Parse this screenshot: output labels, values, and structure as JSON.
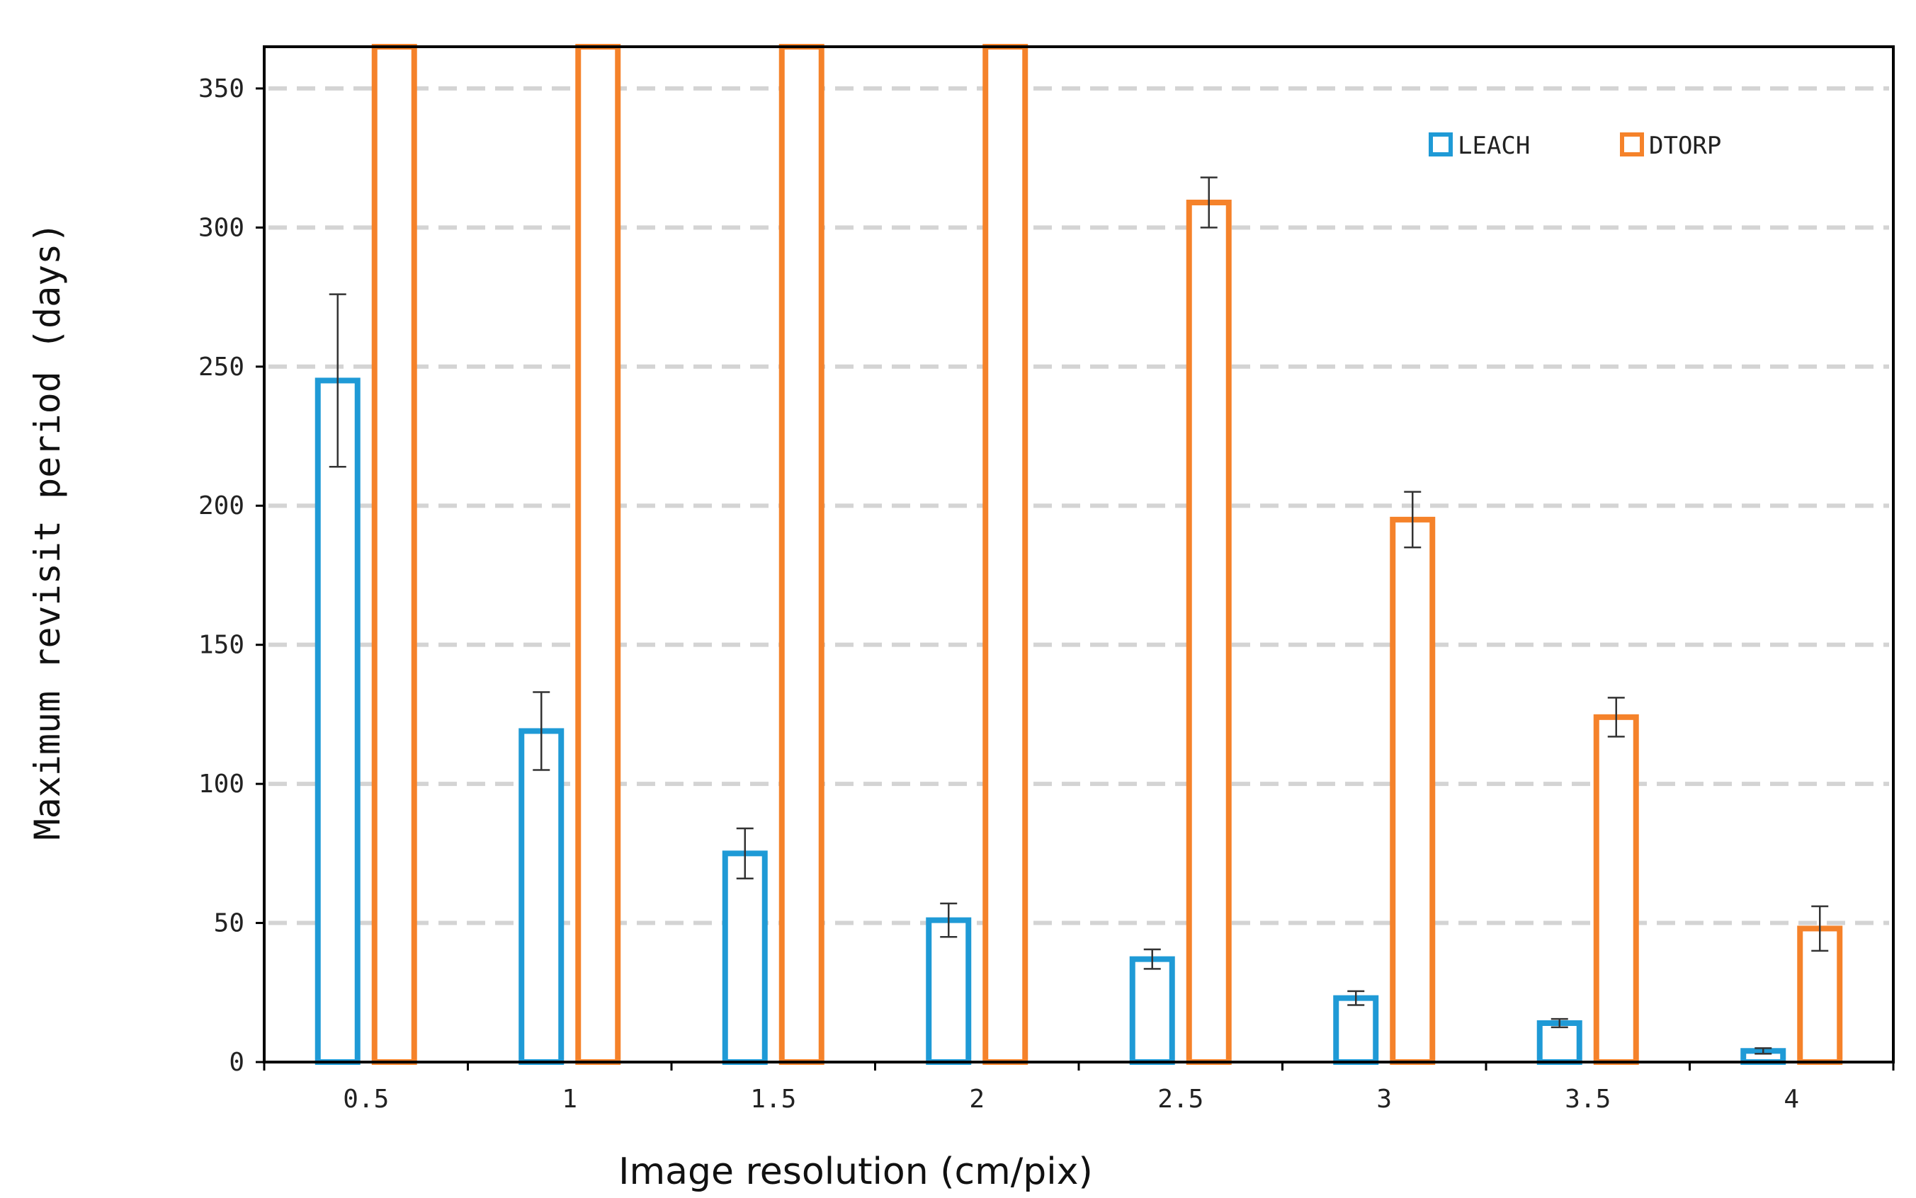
{
  "chart_data": {
    "type": "bar",
    "title": "",
    "xlabel": "Image resolution (cm/pix)",
    "ylabel": "Maximum revisit period (days)",
    "categories": [
      "0.5",
      "1",
      "1.5",
      "2",
      "2.5",
      "3",
      "3.5",
      "4"
    ],
    "ylim": [
      0,
      365
    ],
    "yticks": [
      0,
      50,
      100,
      150,
      200,
      250,
      300,
      350
    ],
    "grid": true,
    "legend_position": "top-right",
    "series": [
      {
        "name": "LEACH",
        "color": "#1f9ad6",
        "values": [
          245,
          119,
          75,
          51,
          37,
          23,
          14,
          4
        ],
        "error": [
          31,
          14,
          9,
          6,
          3.5,
          2.5,
          1.5,
          1
        ]
      },
      {
        "name": "DTORP",
        "color": "#f5822a",
        "values": [
          365,
          365,
          365,
          365,
          309,
          195,
          124,
          48
        ],
        "error": [
          0,
          0,
          0,
          0,
          9,
          10,
          7,
          8
        ]
      }
    ]
  }
}
